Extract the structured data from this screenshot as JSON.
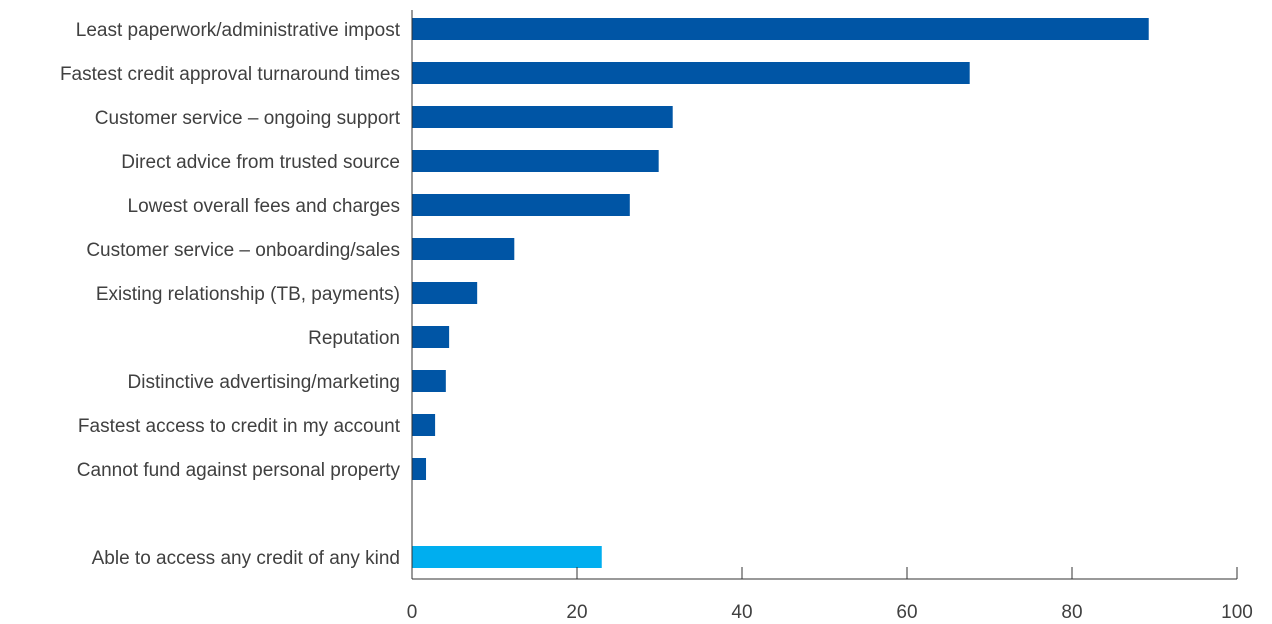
{
  "chart_data": {
    "type": "bar",
    "orientation": "horizontal",
    "categories": [
      "Least paperwork/administrative impost",
      "Fastest credit approval turnaround times",
      "Customer service – ongoing support",
      "Direct advice from trusted source",
      "Lowest overall fees and charges",
      "Customer service – onboarding/sales",
      "Existing relationship (TB, payments)",
      "Reputation",
      "Distinctive advertising/marketing",
      "Fastest access to credit in my account",
      "Cannot fund against personal property",
      "",
      "Able to access any credit of any kind"
    ],
    "values": [
      89.3,
      67.6,
      31.6,
      29.9,
      26.4,
      12.4,
      7.9,
      4.5,
      4.1,
      2.8,
      1.7,
      null,
      23.0
    ],
    "bar_colors": [
      "#0055a5",
      "#0055a5",
      "#0055a5",
      "#0055a5",
      "#0055a5",
      "#0055a5",
      "#0055a5",
      "#0055a5",
      "#0055a5",
      "#0055a5",
      "#0055a5",
      "#0055a5",
      "#00aeef"
    ],
    "xlim": [
      0,
      100
    ],
    "xticks": [
      "0",
      "20",
      "40",
      "60",
      "80",
      "100"
    ],
    "title": "",
    "xlabel": "",
    "ylabel": "",
    "grid": false,
    "legend": "none"
  }
}
